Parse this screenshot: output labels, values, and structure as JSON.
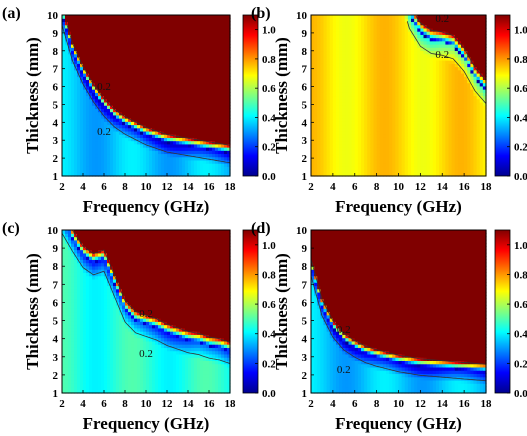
{
  "colors": {
    "colormap": [
      "#00008f",
      "#0000ff",
      "#0080ff",
      "#00ffff",
      "#80ff80",
      "#ffff00",
      "#ff8000",
      "#ff0000",
      "#800000"
    ],
    "contour": "#333333",
    "text": "#000000"
  },
  "chart_data": [
    {
      "type": "heatmap",
      "panel_label": "(a)",
      "xlabel": "Frequency (GHz)",
      "ylabel": "Thickness (mm)",
      "xlim": [
        2,
        18
      ],
      "ylim": [
        1,
        10
      ],
      "xticks": [
        2,
        4,
        6,
        8,
        10,
        12,
        14,
        16,
        18
      ],
      "yticks": [
        1,
        2,
        3,
        4,
        5,
        6,
        7,
        8,
        9,
        10
      ],
      "colorbar": {
        "range": [
          0.0,
          1.1
        ],
        "ticks": [
          "0.0",
          "0.2",
          "0.4",
          "0.6",
          "0.8",
          "1.0"
        ]
      },
      "contour_labels": [
        "0.2",
        "0.2"
      ],
      "contour_label_positions": [
        [
          6.0,
          5.8
        ],
        [
          6.0,
          3.3
        ]
      ],
      "ridge": {
        "f": [
          2,
          3,
          4,
          5,
          6,
          7,
          8,
          9,
          10,
          11,
          12,
          13,
          14,
          15,
          16,
          17,
          18
        ],
        "t": [
          10,
          8.0,
          6.7,
          5.7,
          4.9,
          4.3,
          3.9,
          3.6,
          3.3,
          3.1,
          2.9,
          2.8,
          2.7,
          2.6,
          2.5,
          2.4,
          2.3
        ]
      },
      "width": 0.75,
      "base": 0.35
    },
    {
      "type": "heatmap",
      "panel_label": "(b)",
      "xlabel": "Frequency (GHz)",
      "ylabel": "Thickness (mm)",
      "xlim": [
        2,
        18
      ],
      "ylim": [
        1,
        10
      ],
      "xticks": [
        2,
        4,
        6,
        8,
        10,
        12,
        14,
        16,
        18
      ],
      "yticks": [
        1,
        2,
        3,
        4,
        5,
        6,
        7,
        8,
        9,
        10
      ],
      "colorbar": {
        "range": [
          0.0,
          1.1
        ],
        "ticks": [
          "0.0",
          "0.2",
          "0.4",
          "0.6",
          "0.8",
          "1.0"
        ]
      },
      "contour_labels": [
        "0.2",
        "0.2"
      ],
      "contour_label_positions": [
        [
          14.0,
          9.6
        ],
        [
          14.0,
          7.6
        ]
      ],
      "ridge": {
        "f": [
          2,
          3,
          4,
          5,
          6,
          7,
          8,
          9,
          10,
          11,
          12,
          13,
          14,
          15,
          16,
          17,
          18
        ],
        "t": [
          14,
          14,
          14,
          14,
          14,
          14,
          14,
          14,
          12.0,
          10.0,
          9.0,
          8.6,
          8.5,
          8.3,
          7.6,
          6.5,
          5.8
        ]
      },
      "width": 1.0,
      "base": 0.72
    },
    {
      "type": "heatmap",
      "panel_label": "(c)",
      "xlabel": "Frequency (GHz)",
      "ylabel": "Thickness (mm)",
      "xlim": [
        2,
        18
      ],
      "ylim": [
        1,
        10
      ],
      "xticks": [
        2,
        4,
        6,
        8,
        10,
        12,
        14,
        16,
        18
      ],
      "yticks": [
        1,
        2,
        3,
        4,
        5,
        6,
        7,
        8,
        9,
        10
      ],
      "colorbar": {
        "range": [
          0.0,
          1.1
        ],
        "ticks": [
          "0.0",
          "0.2",
          "0.4",
          "0.6",
          "0.8",
          "1.0"
        ]
      },
      "contour_labels": [
        "0.2",
        "0.2"
      ],
      "contour_label_positions": [
        [
          10.0,
          5.2
        ],
        [
          10.0,
          3.0
        ]
      ],
      "ridge": {
        "f": [
          2,
          3,
          4,
          5,
          6,
          7,
          8,
          9,
          10,
          11,
          12,
          13,
          14,
          15,
          16,
          17,
          18
        ],
        "t": [
          10.5,
          9.5,
          8.6,
          8.2,
          8.4,
          7.0,
          5.6,
          5.0,
          4.8,
          4.6,
          4.3,
          4.1,
          3.9,
          3.8,
          3.6,
          3.5,
          3.3
        ]
      },
      "width": 0.9,
      "base": 0.45
    },
    {
      "type": "heatmap",
      "panel_label": "(d)",
      "xlabel": "Frequency (GHz)",
      "ylabel": "Thickness (mm)",
      "xlim": [
        2,
        18
      ],
      "ylim": [
        1,
        10
      ],
      "xticks": [
        2,
        4,
        6,
        8,
        10,
        12,
        14,
        16,
        18
      ],
      "yticks": [
        1,
        2,
        3,
        4,
        5,
        6,
        7,
        8,
        9,
        10
      ],
      "colorbar": {
        "range": [
          0.0,
          1.1
        ],
        "ticks": [
          "0.0",
          "0.2",
          "0.4",
          "0.6",
          "0.8",
          "1.0"
        ]
      },
      "contour_labels": [
        "0.2",
        "0.2"
      ],
      "contour_label_positions": [
        [
          5.0,
          4.3
        ],
        [
          5.0,
          2.1
        ]
      ],
      "ridge": {
        "f": [
          2,
          3,
          4,
          5,
          6,
          7,
          8,
          9,
          10,
          11,
          12,
          13,
          14,
          15,
          16,
          17,
          18
        ],
        "t": [
          8.0,
          5.8,
          4.6,
          3.9,
          3.5,
          3.2,
          3.0,
          2.85,
          2.7,
          2.6,
          2.5,
          2.45,
          2.4,
          2.35,
          2.3,
          2.25,
          2.2
        ]
      },
      "width": 0.7,
      "base": 0.35
    }
  ]
}
